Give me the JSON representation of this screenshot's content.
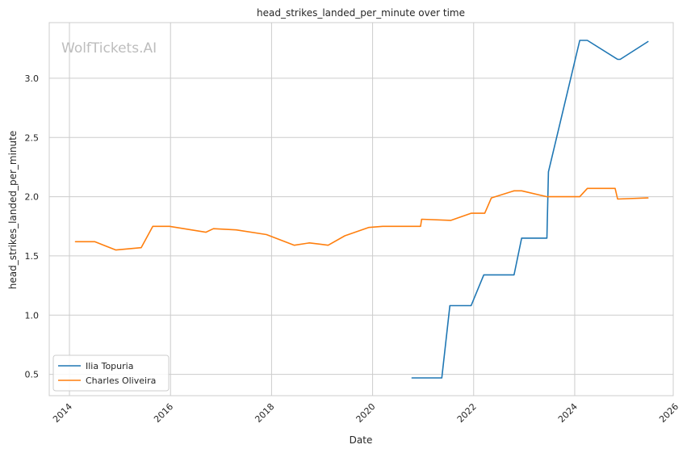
{
  "chart_data": {
    "type": "line",
    "title": "head_strikes_landed_per_minute over time",
    "xlabel": "Date",
    "ylabel": "head_strikes_landed_per_minute",
    "watermark": "WolfTickets.AI",
    "xlim": [
      2013.6,
      2025.95
    ],
    "ylim": [
      0.32,
      3.47
    ],
    "x_ticks": [
      2014,
      2016,
      2018,
      2020,
      2022,
      2024,
      2026
    ],
    "y_ticks": [
      0.5,
      1.0,
      1.5,
      2.0,
      2.5,
      3.0
    ],
    "y_tick_labels": [
      "0.5",
      "1.0",
      "1.5",
      "2.0",
      "2.5",
      "3.0"
    ],
    "grid": true,
    "legend_position": "lower-left",
    "series": [
      {
        "name": "Ilia Topuria",
        "color": "#1f77b4",
        "points": [
          [
            2020.78,
            0.47
          ],
          [
            2021.37,
            0.47
          ],
          [
            2021.53,
            1.08
          ],
          [
            2021.95,
            1.08
          ],
          [
            2022.2,
            1.34
          ],
          [
            2022.8,
            1.34
          ],
          [
            2022.95,
            1.65
          ],
          [
            2023.45,
            1.65
          ],
          [
            2023.48,
            2.21
          ],
          [
            2024.1,
            3.32
          ],
          [
            2024.25,
            3.32
          ],
          [
            2024.85,
            3.16
          ],
          [
            2024.9,
            3.16
          ],
          [
            2025.45,
            3.31
          ]
        ]
      },
      {
        "name": "Charles Oliveira",
        "color": "#ff7f0e",
        "points": [
          [
            2014.12,
            1.62
          ],
          [
            2014.5,
            1.62
          ],
          [
            2014.92,
            1.55
          ],
          [
            2015.42,
            1.57
          ],
          [
            2015.65,
            1.75
          ],
          [
            2015.98,
            1.75
          ],
          [
            2016.7,
            1.7
          ],
          [
            2016.85,
            1.73
          ],
          [
            2017.3,
            1.72
          ],
          [
            2017.9,
            1.68
          ],
          [
            2018.45,
            1.59
          ],
          [
            2018.75,
            1.61
          ],
          [
            2018.95,
            1.6
          ],
          [
            2019.12,
            1.59
          ],
          [
            2019.45,
            1.67
          ],
          [
            2019.92,
            1.74
          ],
          [
            2020.2,
            1.75
          ],
          [
            2020.95,
            1.75
          ],
          [
            2020.97,
            1.81
          ],
          [
            2021.55,
            1.8
          ],
          [
            2021.95,
            1.86
          ],
          [
            2022.22,
            1.86
          ],
          [
            2022.35,
            1.99
          ],
          [
            2022.8,
            2.05
          ],
          [
            2022.95,
            2.05
          ],
          [
            2023.45,
            2.0
          ],
          [
            2024.1,
            2.0
          ],
          [
            2024.25,
            2.07
          ],
          [
            2024.8,
            2.07
          ],
          [
            2024.85,
            1.98
          ],
          [
            2025.45,
            1.99
          ]
        ]
      }
    ]
  }
}
